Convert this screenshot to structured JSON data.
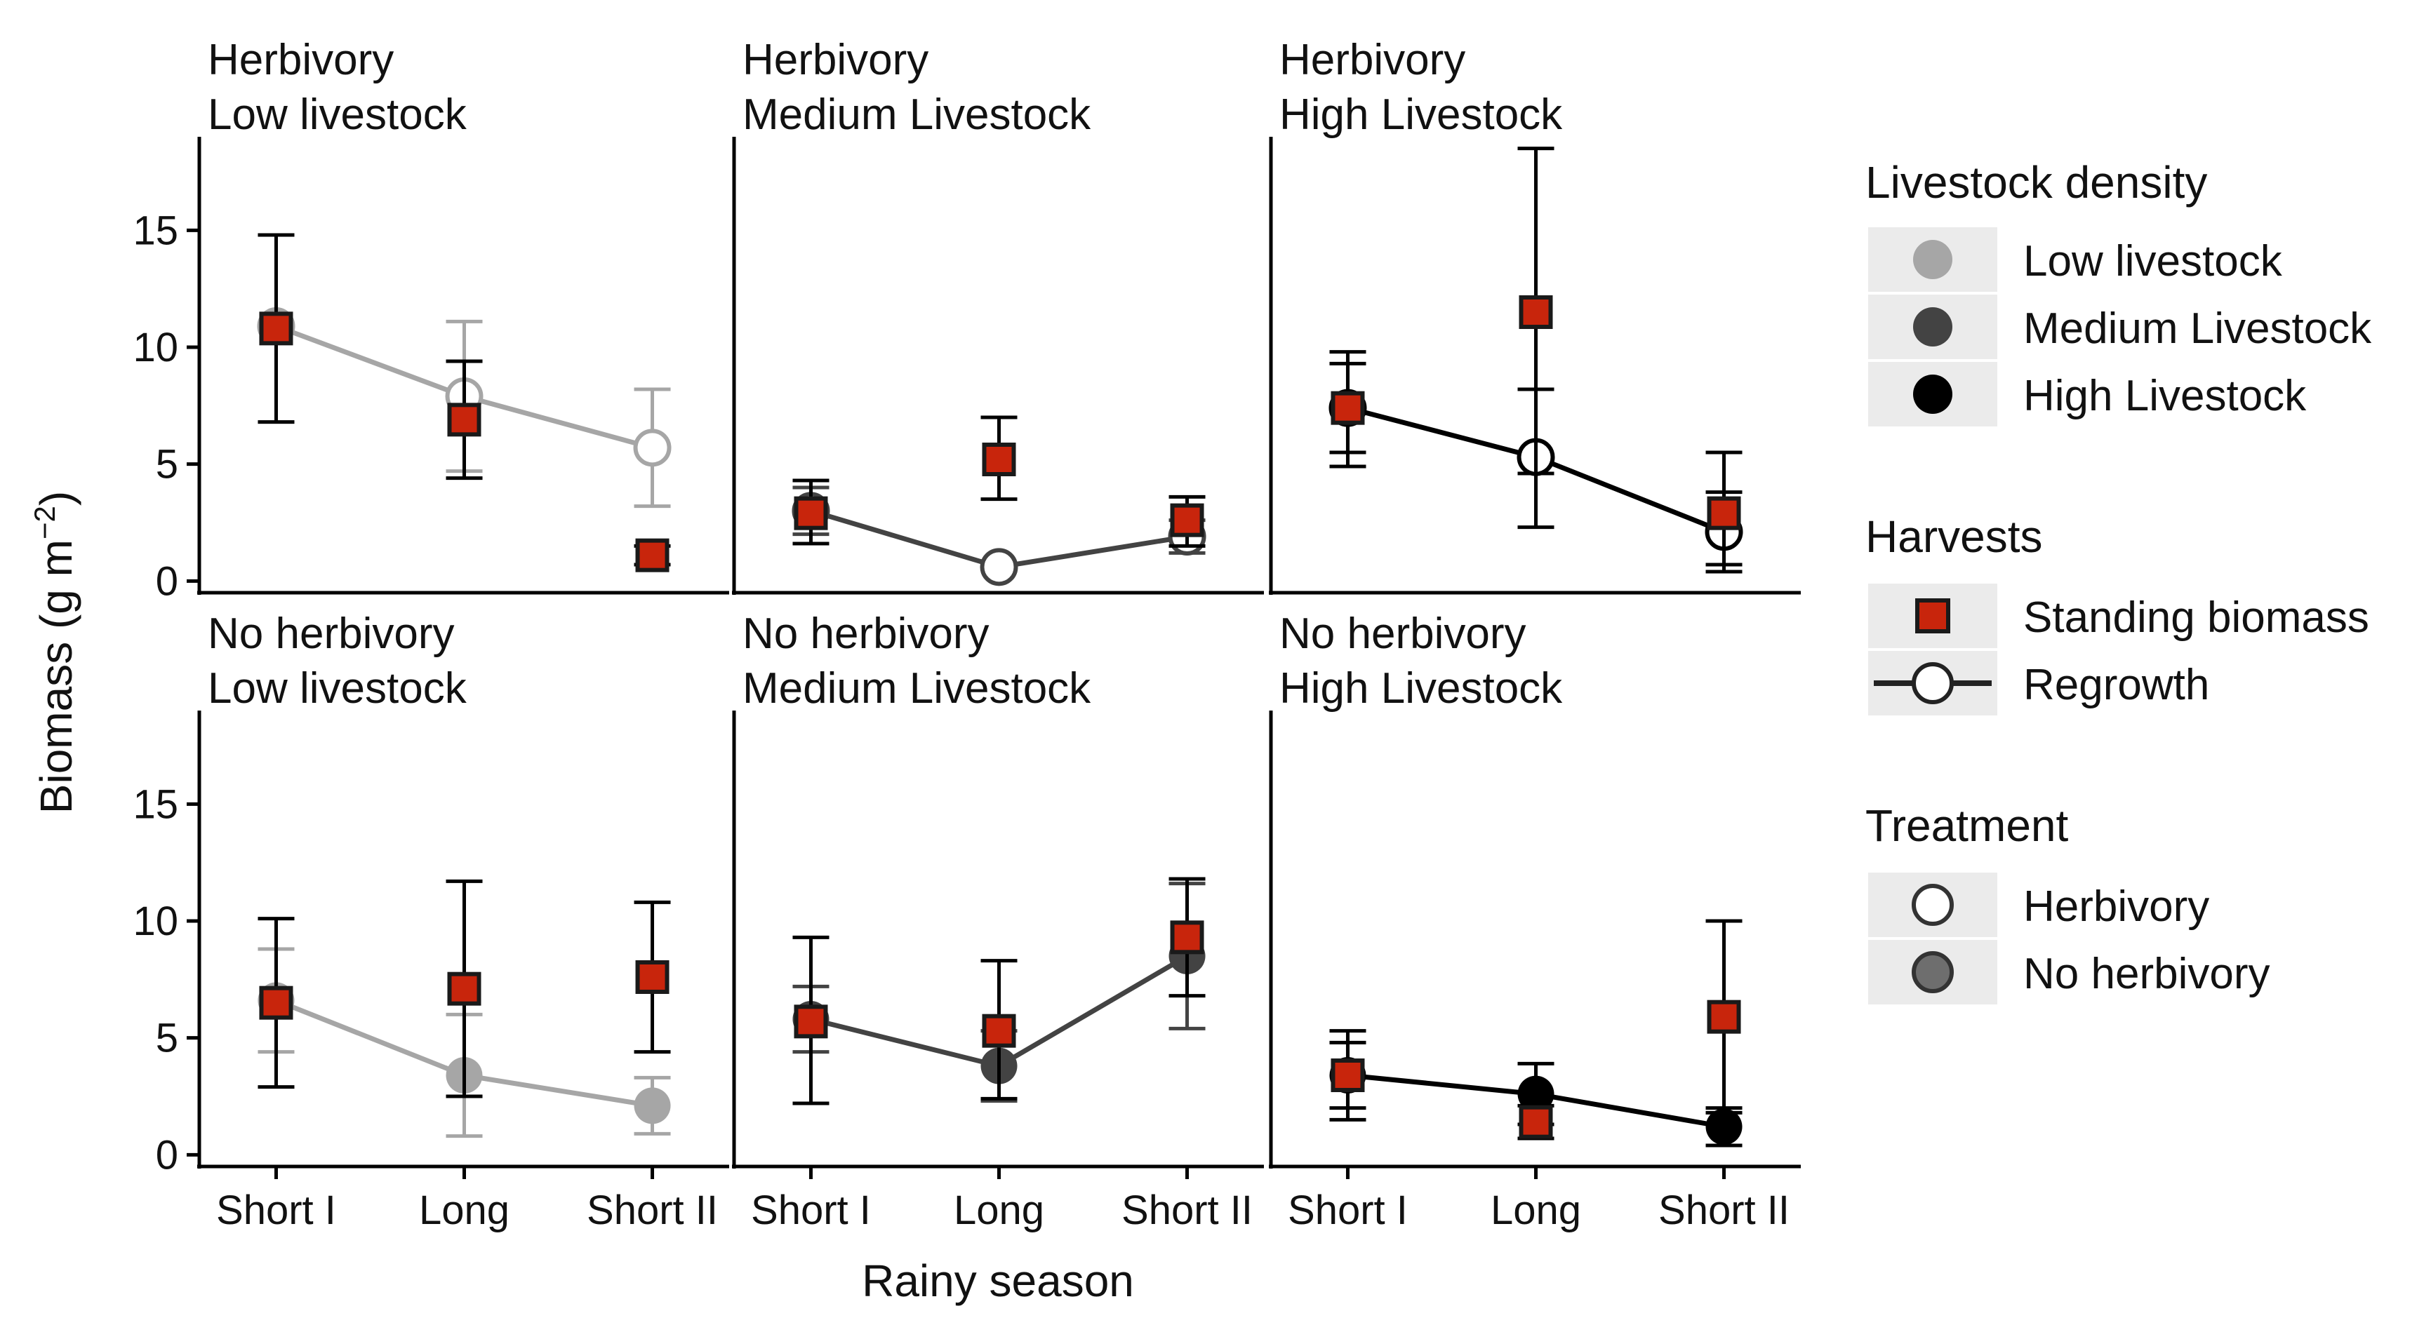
{
  "chart_data": {
    "type": "line",
    "xlabel": "Rainy season",
    "ylabel": "Biomass (g m",
    "ylabel_superscript": "−2",
    "ylabel_close": ")",
    "categories": [
      "Short I",
      "Long",
      "Short II"
    ],
    "ylim": [
      -0.5,
      19
    ],
    "yticks": [
      0,
      5,
      10,
      15
    ],
    "grid": false,
    "legend_position": "right",
    "colors": {
      "low": "#a6a6a6",
      "medium": "#434343",
      "high": "#000000",
      "standing_fill": "#c8250c",
      "standing_edge": "#1a1a1a",
      "legend_key_bg": "#ebebeb"
    },
    "panels": [
      {
        "strip": [
          "Herbivory",
          "Low livestock"
        ],
        "density": "low",
        "treatment": "Herbivory",
        "regrowth": {
          "values": [
            10.9,
            7.9,
            5.7
          ],
          "lower": [
            6.8,
            4.7,
            3.2
          ],
          "upper": [
            14.8,
            11.1,
            8.2
          ]
        },
        "standing": {
          "values": [
            10.8,
            6.9,
            1.1
          ],
          "lower": [
            6.8,
            4.4,
            0.7
          ],
          "upper": [
            14.8,
            9.4,
            1.5
          ]
        }
      },
      {
        "strip": [
          "Herbivory",
          "Medium Livestock"
        ],
        "density": "medium",
        "treatment": "Herbivory",
        "regrowth": {
          "values": [
            3.0,
            0.6,
            1.9
          ],
          "lower": [
            2.0,
            0.5,
            1.2
          ],
          "upper": [
            4.0,
            0.7,
            2.6
          ]
        },
        "standing": {
          "values": [
            2.9,
            5.2,
            2.6
          ],
          "lower": [
            1.6,
            3.5,
            1.5
          ],
          "upper": [
            4.3,
            7.0,
            3.6
          ]
        }
      },
      {
        "strip": [
          "Herbivory",
          "High Livestock"
        ],
        "density": "high",
        "treatment": "Herbivory",
        "regrowth": {
          "values": [
            7.4,
            5.3,
            2.1
          ],
          "lower": [
            5.5,
            2.3,
            0.4
          ],
          "upper": [
            9.3,
            8.2,
            3.8
          ]
        },
        "standing": {
          "values": [
            7.4,
            11.5,
            2.9
          ],
          "lower": [
            4.9,
            4.6,
            0.7
          ],
          "upper": [
            9.8,
            18.5,
            5.5
          ]
        }
      },
      {
        "strip": [
          "No herbivory",
          "Low livestock"
        ],
        "density": "low",
        "treatment": "No herbivory",
        "regrowth": {
          "values": [
            6.6,
            3.4,
            2.1
          ],
          "lower": [
            4.4,
            0.8,
            0.9
          ],
          "upper": [
            8.8,
            6.0,
            3.3
          ]
        },
        "standing": {
          "values": [
            6.5,
            7.1,
            7.6
          ],
          "lower": [
            2.9,
            2.5,
            4.4
          ],
          "upper": [
            10.1,
            11.7,
            10.8
          ]
        }
      },
      {
        "strip": [
          "No herbivory",
          "Medium Livestock"
        ],
        "density": "medium",
        "treatment": "No herbivory",
        "regrowth": {
          "values": [
            5.8,
            3.8,
            8.5
          ],
          "lower": [
            4.4,
            2.3,
            5.4
          ],
          "upper": [
            7.2,
            5.3,
            11.6
          ]
        },
        "standing": {
          "values": [
            5.7,
            5.3,
            9.3
          ],
          "lower": [
            2.2,
            2.4,
            6.8
          ],
          "upper": [
            9.3,
            8.3,
            11.8
          ]
        }
      },
      {
        "strip": [
          "No herbivory",
          "High Livestock"
        ],
        "density": "high",
        "treatment": "No herbivory",
        "regrowth": {
          "values": [
            3.4,
            2.6,
            1.2
          ],
          "lower": [
            2.0,
            1.3,
            0.4
          ],
          "upper": [
            4.8,
            3.9,
            2.0
          ]
        },
        "standing": {
          "values": [
            3.4,
            1.4,
            5.9
          ],
          "lower": [
            1.5,
            0.7,
            1.8
          ],
          "upper": [
            5.3,
            2.1,
            10.0
          ]
        }
      }
    ],
    "legend": {
      "density": {
        "title": "Livestock density",
        "items": [
          "Low livestock",
          "Medium Livestock",
          "High Livestock"
        ]
      },
      "harvests": {
        "title": "Harvests",
        "items": [
          "Standing biomass",
          "Regrowth"
        ]
      },
      "treatment": {
        "title": "Treatment",
        "items": [
          "Herbivory",
          "No herbivory"
        ]
      }
    }
  }
}
